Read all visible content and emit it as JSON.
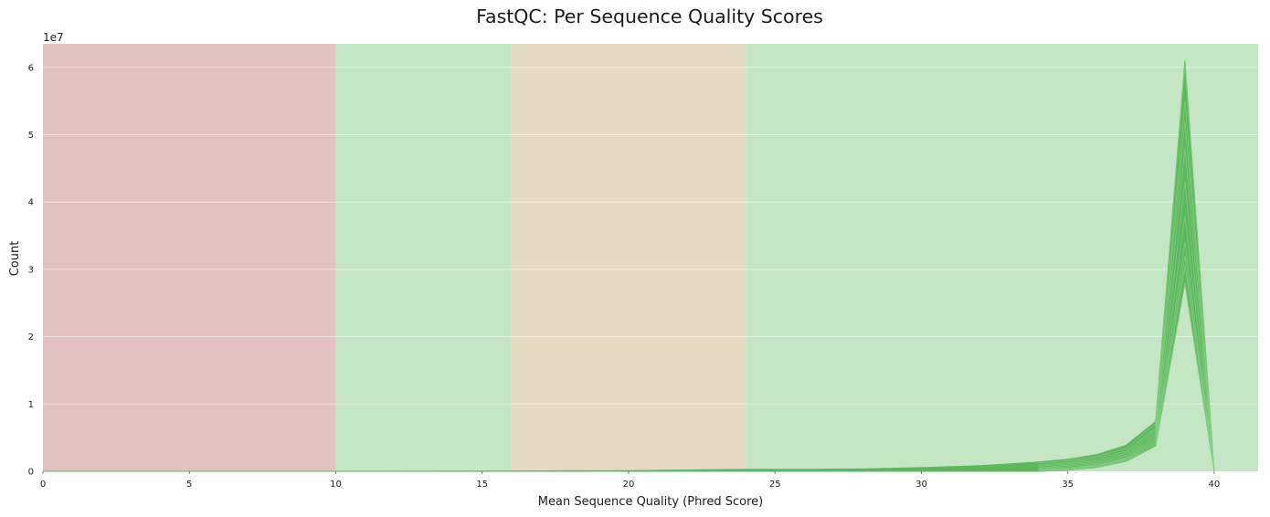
{
  "chart_data": {
    "type": "area",
    "title": "FastQC: Per Sequence Quality Scores",
    "xlabel": "Mean Sequence Quality (Phred Score)",
    "ylabel": "Count",
    "y_offset_label": "1e7",
    "xlim": [
      0,
      41.5
    ],
    "ylim": [
      0,
      63500000
    ],
    "x_ticks": [
      0,
      5,
      10,
      15,
      20,
      25,
      30,
      35,
      40
    ],
    "y_ticks": [
      0,
      1,
      2,
      3,
      4,
      5,
      6
    ],
    "y_tick_multiplier": 10000000,
    "grid": "horizontal",
    "quality_bands": [
      {
        "from": 0,
        "to": 10,
        "color": "#e4c1c1"
      },
      {
        "from": 10,
        "to": 16,
        "color": "#c4e6c4"
      },
      {
        "from": 16,
        "to": 24,
        "color": "#e4dac4"
      },
      {
        "from": 24,
        "to": 41.5,
        "color": "#c4e6c4"
      }
    ],
    "series_color": "#5cb85c",
    "envelope": {
      "x": [
        0,
        10,
        16,
        20,
        22,
        24,
        26,
        28,
        30,
        32,
        33,
        34,
        35,
        36,
        37,
        38,
        39,
        40
      ],
      "upper": [
        0,
        0,
        50000,
        100000,
        200000,
        300000,
        300000,
        350000,
        550000,
        850000,
        1100000,
        1400000,
        1800000,
        2500000,
        3900000,
        7400000,
        61000000,
        0
      ],
      "lower": [
        0,
        0,
        0,
        0,
        0,
        0,
        0,
        0,
        0,
        0,
        0,
        0,
        150000,
        600000,
        1500000,
        3800000,
        28000000,
        0
      ]
    },
    "sample_lines": [
      {
        "x": [
          34,
          35,
          36,
          37,
          38,
          39,
          40
        ],
        "y": [
          1200000,
          1600000,
          2200000,
          3400000,
          7100000,
          60500000,
          0
        ]
      },
      {
        "x": [
          34,
          35,
          36,
          37,
          38,
          39,
          40
        ],
        "y": [
          900000,
          1300000,
          1900000,
          3000000,
          6500000,
          55000000,
          0
        ]
      },
      {
        "x": [
          34,
          35,
          36,
          37,
          38,
          39,
          40
        ],
        "y": [
          700000,
          1100000,
          1600000,
          2700000,
          6200000,
          52000000,
          0
        ]
      },
      {
        "x": [
          34,
          35,
          36,
          37,
          38,
          39,
          40
        ],
        "y": [
          500000,
          900000,
          1400000,
          2400000,
          5800000,
          48000000,
          0
        ]
      },
      {
        "x": [
          34,
          35,
          36,
          37,
          38,
          39,
          40
        ],
        "y": [
          400000,
          700000,
          1200000,
          2200000,
          5400000,
          43000000,
          0
        ]
      },
      {
        "x": [
          34,
          35,
          36,
          37,
          38,
          39,
          40
        ],
        "y": [
          300000,
          500000,
          1000000,
          2000000,
          5000000,
          38000000,
          0
        ]
      },
      {
        "x": [
          34,
          35,
          36,
          37,
          38,
          39,
          40
        ],
        "y": [
          200000,
          400000,
          900000,
          1900000,
          4700000,
          34000000,
          0
        ]
      },
      {
        "x": [
          34,
          35,
          36,
          37,
          38,
          39,
          40
        ],
        "y": [
          200000,
          300000,
          800000,
          1800000,
          4400000,
          32000000,
          0
        ]
      },
      {
        "x": [
          34,
          35,
          36,
          37,
          38,
          39,
          40
        ],
        "y": [
          100000,
          200000,
          700000,
          1700000,
          4100000,
          30500000,
          0
        ]
      },
      {
        "x": [
          34,
          35,
          36,
          37,
          38,
          39,
          40
        ],
        "y": [
          100000,
          200000,
          650000,
          1600000,
          3900000,
          28000000,
          0
        ]
      }
    ]
  }
}
